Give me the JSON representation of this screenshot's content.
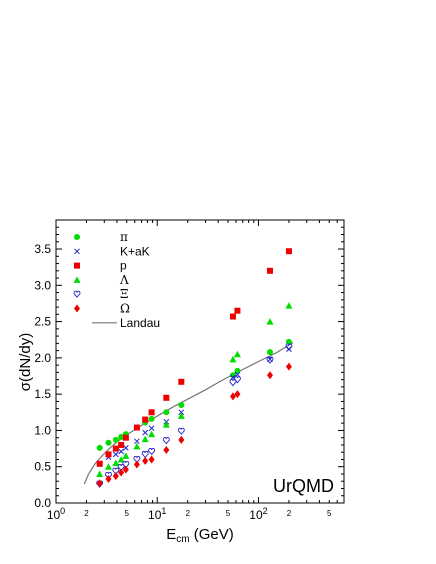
{
  "chart_data": {
    "type": "scatter",
    "title": "",
    "xlabel_main": "E",
    "xlabel_sub": "cm",
    "xlabel_unit": " (GeV)",
    "ylabel": "σ(dN/dy)",
    "xscale": "log",
    "xlim": [
      1,
      700
    ],
    "ylim": [
      0.0,
      3.9
    ],
    "grid": false,
    "legend_position": "top-left",
    "annotation": "UrQMD",
    "x_major_ticks": [
      {
        "value": 1,
        "base": "10",
        "exp": "0"
      },
      {
        "value": 10,
        "base": "10",
        "exp": "1"
      },
      {
        "value": 100,
        "base": "10",
        "exp": "2"
      }
    ],
    "x_minor_labels": [
      {
        "value": 2,
        "label": "2"
      },
      {
        "value": 5,
        "label": "5"
      },
      {
        "value": 20,
        "label": "2"
      },
      {
        "value": 50,
        "label": "5"
      },
      {
        "value": 200,
        "label": "2"
      },
      {
        "value": 500,
        "label": "5"
      }
    ],
    "y_ticks": [
      "0.0",
      "0.5",
      "1.0",
      "1.5",
      "2.0",
      "2.5",
      "3.0",
      "3.5"
    ],
    "x": [
      2.7,
      3.3,
      3.9,
      4.4,
      4.9,
      6.3,
      7.6,
      8.8,
      12.3,
      17.3,
      56,
      62,
      130,
      200
    ],
    "series": [
      {
        "name": "π",
        "marker": "circle",
        "color": "#00dd00",
        "values": [
          0.76,
          0.83,
          0.87,
          0.91,
          0.95,
          1.04,
          1.11,
          1.16,
          1.25,
          1.35,
          1.76,
          1.82,
          2.08,
          2.22
        ]
      },
      {
        "name": "K+aK",
        "marker": "cross",
        "color": "#2222cc",
        "values": [
          0.55,
          0.63,
          0.67,
          0.71,
          0.76,
          0.85,
          0.97,
          1.03,
          1.12,
          1.25,
          1.73,
          1.77,
          1.98,
          2.12
        ]
      },
      {
        "name": "p",
        "marker": "square",
        "color": "#ee0000",
        "values": [
          0.54,
          0.67,
          0.75,
          0.8,
          0.9,
          1.04,
          1.15,
          1.25,
          1.45,
          1.67,
          2.57,
          2.65,
          3.2,
          3.47
        ]
      },
      {
        "name": "Λ",
        "marker": "triangle",
        "color": "#00dd00",
        "values": [
          0.4,
          0.5,
          0.55,
          0.6,
          0.65,
          0.78,
          0.88,
          0.95,
          1.08,
          1.2,
          1.98,
          2.05,
          2.5,
          2.72
        ]
      },
      {
        "name": "Ξ",
        "marker": "heart",
        "color": "#2222cc",
        "values": [
          0.26,
          0.38,
          0.44,
          0.49,
          0.53,
          0.6,
          0.67,
          0.71,
          0.86,
          0.99,
          1.66,
          1.7,
          1.97,
          2.15
        ]
      },
      {
        "name": "Ω",
        "marker": "diamond",
        "color": "#ee0000",
        "values": [
          0.27,
          0.33,
          0.37,
          0.42,
          0.46,
          0.53,
          0.58,
          0.6,
          0.73,
          0.87,
          1.47,
          1.5,
          1.76,
          1.88
        ]
      }
    ],
    "curve": {
      "name": "Landau",
      "color": "#777777",
      "x": [
        1.9,
        2.1,
        2.4,
        2.8,
        3.3,
        4,
        5,
        6.5,
        8.5,
        11,
        15,
        20,
        30,
        45,
        70,
        100,
        150,
        220
      ],
      "y": [
        0.26,
        0.4,
        0.53,
        0.64,
        0.74,
        0.84,
        0.94,
        1.04,
        1.14,
        1.23,
        1.34,
        1.43,
        1.56,
        1.7,
        1.84,
        1.95,
        2.07,
        2.21
      ]
    }
  }
}
